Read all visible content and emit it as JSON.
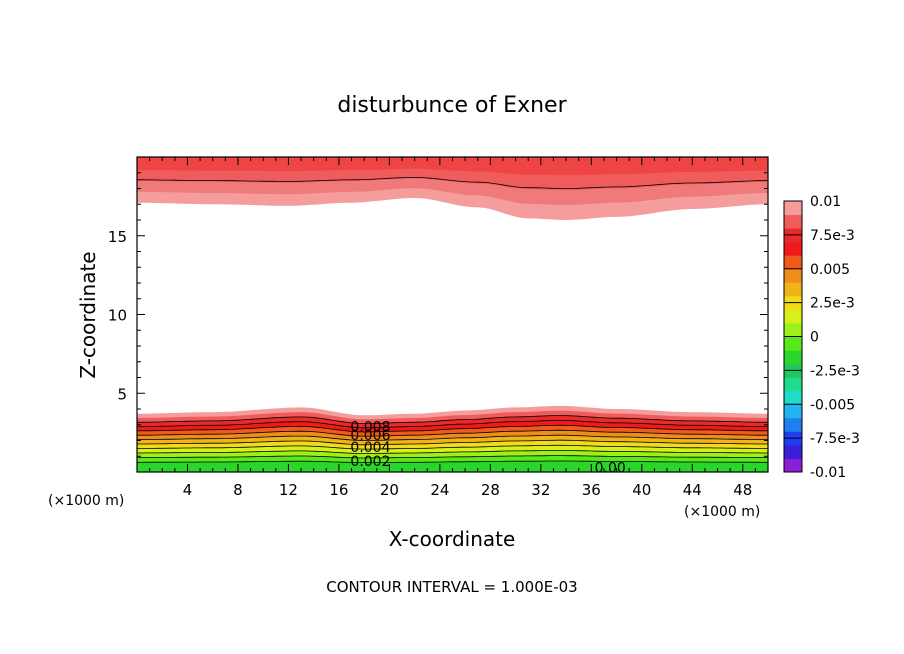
{
  "chart_data": {
    "type": "heatmap",
    "subtype": "filled-contour",
    "title": "disturbunce of Exner",
    "xlabel": "X-coordinate",
    "ylabel": "Z-coordinate",
    "x_unit_label": "(×1000 m)",
    "x_unit_label_right": "(×1000 m)",
    "footer": "CONTOUR INTERVAL = 1.000E-03",
    "xlim": [
      0,
      50
    ],
    "ylim": [
      0,
      20
    ],
    "x_ticks": [
      4,
      8,
      12,
      16,
      20,
      24,
      28,
      32,
      36,
      40,
      44,
      48
    ],
    "x_tick_labels": [
      "4",
      "8",
      "12",
      "16",
      "20",
      "24",
      "28",
      "32",
      "36",
      "40",
      "44",
      "48"
    ],
    "y_ticks": [
      5,
      10,
      15
    ],
    "y_tick_labels": [
      "5",
      "10",
      "15"
    ],
    "colorbar": {
      "levels": [
        -0.01,
        -0.0075,
        -0.005,
        -0.0025,
        0,
        0.0025,
        0.005,
        0.0075,
        0.01
      ],
      "labels": [
        "-0.01",
        "-7.5e-3",
        "-0.005",
        "-2.5e-3",
        "0",
        "2.5e-3",
        "0.005",
        "7.5e-3",
        "0.01"
      ],
      "colors": [
        "#8a1fd8",
        "#3a1fd8",
        "#1f3ef0",
        "#1f7ef0",
        "#23b3f0",
        "#1fdcc8",
        "#1fdc8c",
        "#1fc85a",
        "#2ad62a",
        "#5ae81a",
        "#9ef01a",
        "#d8f01a",
        "#f0dc1a",
        "#f0b41a",
        "#f08c1a",
        "#f05a1a",
        "#f01a1a",
        "#e82a2a",
        "#f05c5c",
        "#f59c9c"
      ]
    },
    "bottom_layer": {
      "x": [
        0,
        6,
        13,
        18,
        22,
        26,
        30,
        33.5,
        38,
        44,
        50
      ],
      "top_height": [
        3.7,
        3.8,
        4.1,
        3.6,
        3.7,
        3.9,
        4.1,
        4.2,
        4.0,
        3.8,
        3.7
      ],
      "level_colors": [
        "#2ad62a",
        "#5ae81a",
        "#9ef01a",
        "#d8f01a",
        "#f0dc1a",
        "#f0b41a",
        "#f08c1a",
        "#f05a1a",
        "#f01a1a",
        "#e82a2a",
        "#f05c5c",
        "#f59c9c"
      ]
    },
    "top_layer": {
      "x": [
        0,
        6,
        12,
        17,
        22,
        27,
        31,
        34,
        38,
        44,
        50
      ],
      "bottom_height": [
        17.1,
        17.0,
        16.9,
        17.1,
        17.4,
        16.8,
        16.1,
        16.0,
        16.2,
        16.7,
        17.0
      ],
      "level_colors": [
        "#f59c9c",
        "#f07a7a",
        "#f05c5c",
        "#ee4444"
      ]
    },
    "contour_labels": [
      {
        "text": "0.008",
        "x": 18.5,
        "y": 2.9
      },
      {
        "text": "0.006",
        "x": 18.5,
        "y": 2.35
      },
      {
        "text": "0.004",
        "x": 18.5,
        "y": 1.6
      },
      {
        "text": "0.002",
        "x": 18.5,
        "y": 0.7
      },
      {
        "text": "0.00",
        "x": 37.5,
        "y": 0.3
      }
    ]
  }
}
